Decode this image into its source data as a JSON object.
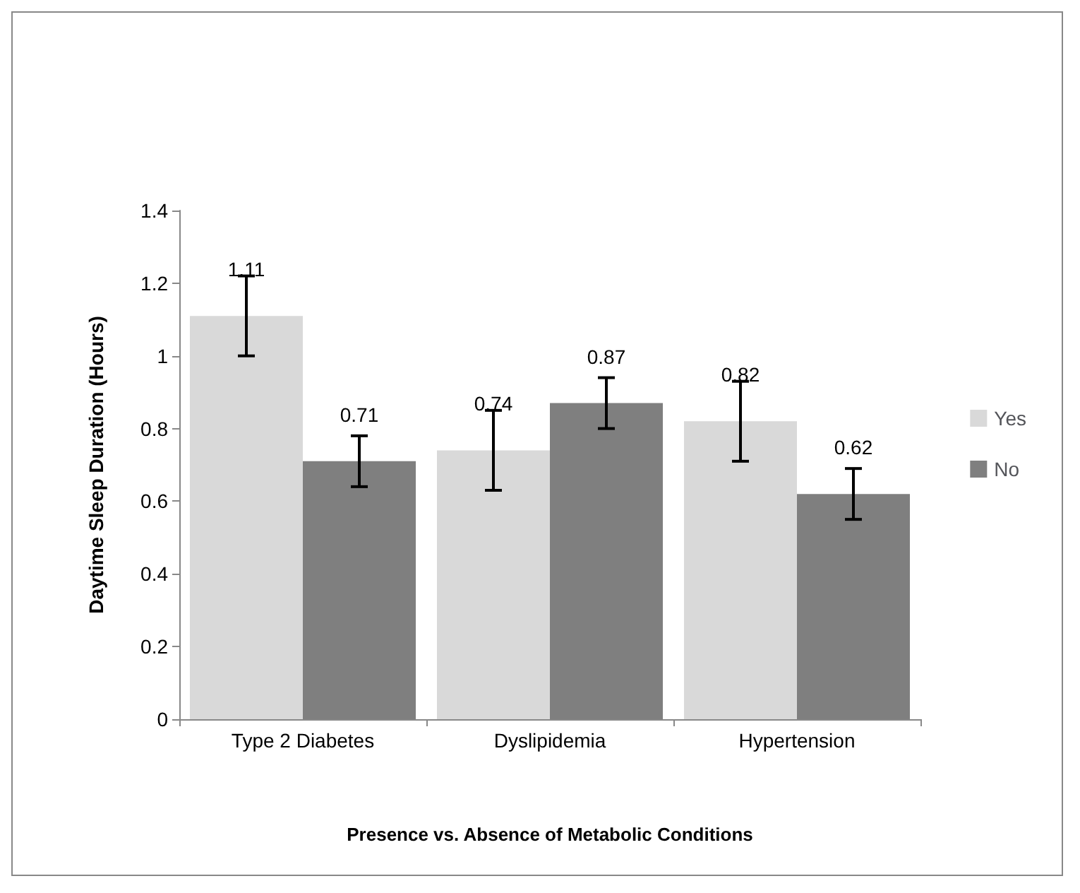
{
  "chart_data": {
    "type": "bar",
    "xlabel": "Presence vs. Absence of Metabolic Conditions",
    "ylabel": "Daytime Sleep Duration (Hours)",
    "categories": [
      "Type 2 Diabetes",
      "Dyslipidemia",
      "Hypertension"
    ],
    "series": [
      {
        "name": "Yes",
        "color": "#d9d9d9",
        "values": [
          1.11,
          0.74,
          0.82
        ],
        "errors": [
          [
            1.0,
            1.22
          ],
          [
            0.63,
            0.85
          ],
          [
            0.71,
            0.93
          ]
        ]
      },
      {
        "name": "No",
        "color": "#7f7f7f",
        "values": [
          0.71,
          0.87,
          0.62
        ],
        "errors": [
          [
            0.64,
            0.78
          ],
          [
            0.8,
            0.94
          ],
          [
            0.55,
            0.69
          ]
        ]
      }
    ],
    "ylim": [
      0,
      1.4
    ],
    "yticks": [
      0,
      0.2,
      0.4,
      0.6,
      0.8,
      1,
      1.2,
      1.4
    ],
    "grid": false,
    "legend": "right",
    "data_labels": true
  }
}
